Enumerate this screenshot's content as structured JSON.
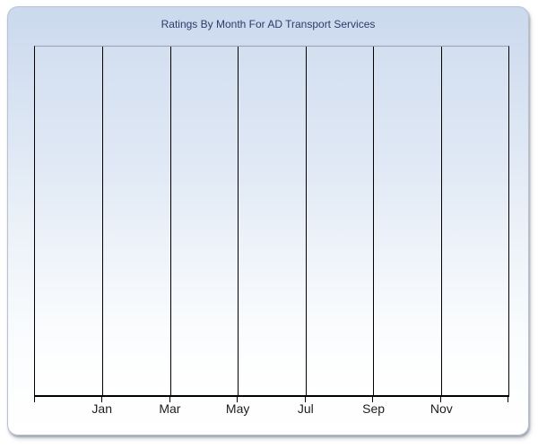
{
  "chart": {
    "title": "Ratings By Month For AD Transport Services"
  },
  "x_axis": {
    "tick_labels": [
      "Jan",
      "Mar",
      "May",
      "Jul",
      "Sep",
      "Nov"
    ]
  },
  "chart_data": {
    "type": "line",
    "title": "Ratings By Month For AD Transport Services",
    "categories": [
      "Jan",
      "Mar",
      "May",
      "Jul",
      "Sep",
      "Nov"
    ],
    "series": [],
    "xlabel": "",
    "ylabel": "",
    "y_tick_labels": [],
    "grid": "vertical gridlines only, every other month labeled",
    "legend": "none",
    "plot_is_empty": true
  },
  "colors": {
    "title-color": "#2e3a69",
    "label-color": "#1c1c1c",
    "gridline-color": "#000000",
    "plot-top-border": "#9aa2ad",
    "panel-border": "#b7c2d4",
    "panel-bg-top": "#cbd9ee",
    "panel-bg-bottom": "#ffffff",
    "plot-bg-top": "#d3dff0",
    "plot-bg-bottom": "#ffffff"
  }
}
